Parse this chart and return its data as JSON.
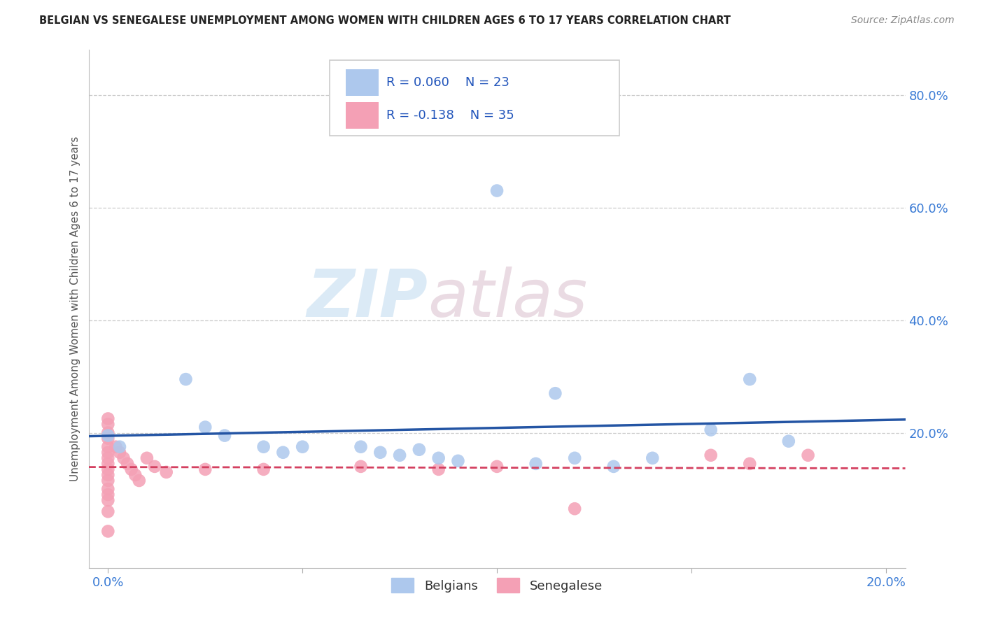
{
  "title": "BELGIAN VS SENEGALESE UNEMPLOYMENT AMONG WOMEN WITH CHILDREN AGES 6 TO 17 YEARS CORRELATION CHART",
  "source": "Source: ZipAtlas.com",
  "ylabel": "Unemployment Among Women with Children Ages 6 to 17 years",
  "xlim": [
    -0.005,
    0.205
  ],
  "ylim": [
    -0.04,
    0.88
  ],
  "xticks": [
    0.0,
    0.05,
    0.1,
    0.15,
    0.2
  ],
  "xticklabels": [
    "0.0%",
    "",
    "",
    "",
    "20.0%"
  ],
  "yticks": [
    0.2,
    0.4,
    0.6,
    0.8
  ],
  "yticklabels": [
    "20.0%",
    "40.0%",
    "60.0%",
    "80.0%"
  ],
  "legend_r": [
    "R = 0.060",
    "R = -0.138"
  ],
  "legend_n": [
    "N = 23",
    "N = 35"
  ],
  "belgian_color": "#adc8ed",
  "senegalese_color": "#f4a0b5",
  "belgian_line_color": "#2455a4",
  "senegalese_line_color": "#d44060",
  "watermark_zip": "ZIP",
  "watermark_atlas": "atlas",
  "background_color": "#ffffff",
  "grid_color": "#cccccc",
  "belgian_scatter": [
    [
      0.0,
      0.195
    ],
    [
      0.003,
      0.175
    ],
    [
      0.02,
      0.295
    ],
    [
      0.025,
      0.21
    ],
    [
      0.03,
      0.195
    ],
    [
      0.04,
      0.175
    ],
    [
      0.045,
      0.165
    ],
    [
      0.05,
      0.175
    ],
    [
      0.065,
      0.175
    ],
    [
      0.07,
      0.165
    ],
    [
      0.075,
      0.16
    ],
    [
      0.08,
      0.17
    ],
    [
      0.085,
      0.155
    ],
    [
      0.09,
      0.15
    ],
    [
      0.1,
      0.63
    ],
    [
      0.11,
      0.145
    ],
    [
      0.115,
      0.27
    ],
    [
      0.12,
      0.155
    ],
    [
      0.13,
      0.14
    ],
    [
      0.14,
      0.155
    ],
    [
      0.155,
      0.205
    ],
    [
      0.165,
      0.295
    ],
    [
      0.175,
      0.185
    ]
  ],
  "senegalese_scatter": [
    [
      0.0,
      0.225
    ],
    [
      0.0,
      0.215
    ],
    [
      0.0,
      0.2
    ],
    [
      0.0,
      0.19
    ],
    [
      0.0,
      0.175
    ],
    [
      0.0,
      0.165
    ],
    [
      0.0,
      0.155
    ],
    [
      0.0,
      0.145
    ],
    [
      0.0,
      0.135
    ],
    [
      0.0,
      0.125
    ],
    [
      0.0,
      0.115
    ],
    [
      0.0,
      0.1
    ],
    [
      0.0,
      0.09
    ],
    [
      0.0,
      0.08
    ],
    [
      0.0,
      0.06
    ],
    [
      0.0,
      0.025
    ],
    [
      0.002,
      0.175
    ],
    [
      0.003,
      0.165
    ],
    [
      0.004,
      0.155
    ],
    [
      0.005,
      0.145
    ],
    [
      0.006,
      0.135
    ],
    [
      0.007,
      0.125
    ],
    [
      0.008,
      0.115
    ],
    [
      0.01,
      0.155
    ],
    [
      0.012,
      0.14
    ],
    [
      0.015,
      0.13
    ],
    [
      0.025,
      0.135
    ],
    [
      0.04,
      0.135
    ],
    [
      0.065,
      0.14
    ],
    [
      0.085,
      0.135
    ],
    [
      0.1,
      0.14
    ],
    [
      0.12,
      0.065
    ],
    [
      0.155,
      0.16
    ],
    [
      0.165,
      0.145
    ],
    [
      0.18,
      0.16
    ]
  ]
}
